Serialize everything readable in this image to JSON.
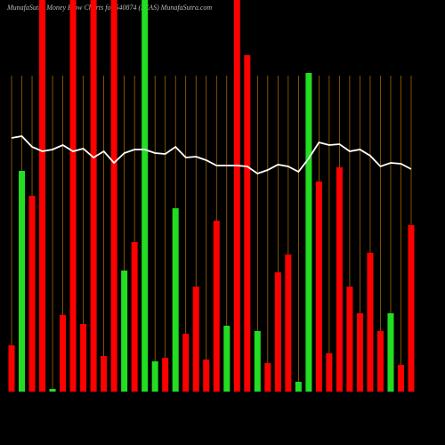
{
  "chart_data": {
    "type": "bar",
    "title": "MunafaSutra  Money Flow  Charts for 540874  (SEAS) MunafaSutra.com",
    "categories": [
      null,
      null,
      null,
      null,
      null,
      null,
      null,
      null,
      null,
      null,
      null,
      null,
      null,
      null,
      null,
      null,
      null,
      null,
      null,
      null,
      null,
      null,
      null,
      null,
      null,
      null,
      null,
      null,
      null,
      null,
      null,
      null,
      null,
      null,
      null,
      null,
      null,
      null,
      null,
      null
    ],
    "values": [
      52,
      248,
      220,
      440,
      3,
      86,
      440,
      76,
      440,
      40,
      440,
      136,
      168,
      440,
      34,
      38,
      206,
      65,
      118,
      36,
      192,
      74,
      440,
      378,
      68,
      32,
      134,
      154,
      11,
      358,
      236,
      43,
      252,
      118,
      88,
      156,
      68,
      88,
      30,
      187
    ],
    "colors": [
      "#ff0000",
      "#22dd22",
      "#ff0000",
      "#ff0000",
      "#22dd22",
      "#ff0000",
      "#ff0000",
      "#ff0000",
      "#ff0000",
      "#ff0000",
      "#ff0000",
      "#22dd22",
      "#ff0000",
      "#22dd22",
      "#22dd22",
      "#ff0000",
      "#22dd22",
      "#ff0000",
      "#ff0000",
      "#ff0000",
      "#ff0000",
      "#22dd22",
      "#ff0000",
      "#ff0000",
      "#22dd22",
      "#ff0000",
      "#ff0000",
      "#ff0000",
      "#22dd22",
      "#22dd22",
      "#ff0000",
      "#ff0000",
      "#ff0000",
      "#ff0000",
      "#ff0000",
      "#ff0000",
      "#ff0000",
      "#22dd22",
      "#ff0000",
      "#ff0000"
    ],
    "line_values": [
      285,
      287,
      275,
      270,
      272,
      277,
      270,
      273,
      263,
      270,
      257,
      268,
      272,
      272,
      268,
      267,
      275,
      263,
      264,
      260,
      254,
      254,
      254,
      253,
      245,
      249,
      255,
      253,
      247,
      262,
      280,
      277,
      278,
      270,
      272,
      265,
      253,
      257,
      256,
      250
    ],
    "line_color": "#ffffff",
    "grid": true,
    "grid_color": "#b87400",
    "ylim": [
      0,
      440
    ]
  }
}
